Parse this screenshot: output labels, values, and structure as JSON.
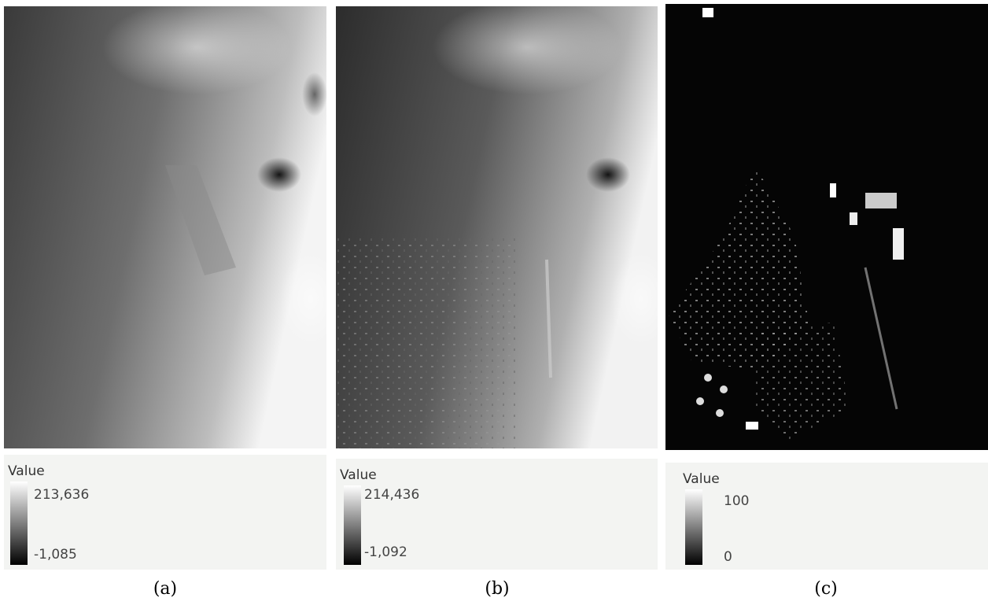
{
  "panels": [
    {
      "legend": {
        "title": "Value",
        "max": "213,636",
        "min": "-1,085"
      },
      "caption": "(a)"
    },
    {
      "legend": {
        "title": "Value",
        "max": "214,436",
        "min": "-1,092"
      },
      "caption": "(b)"
    },
    {
      "legend": {
        "title": "Value",
        "max": "100",
        "min": "0"
      },
      "caption": "(c)"
    }
  ]
}
